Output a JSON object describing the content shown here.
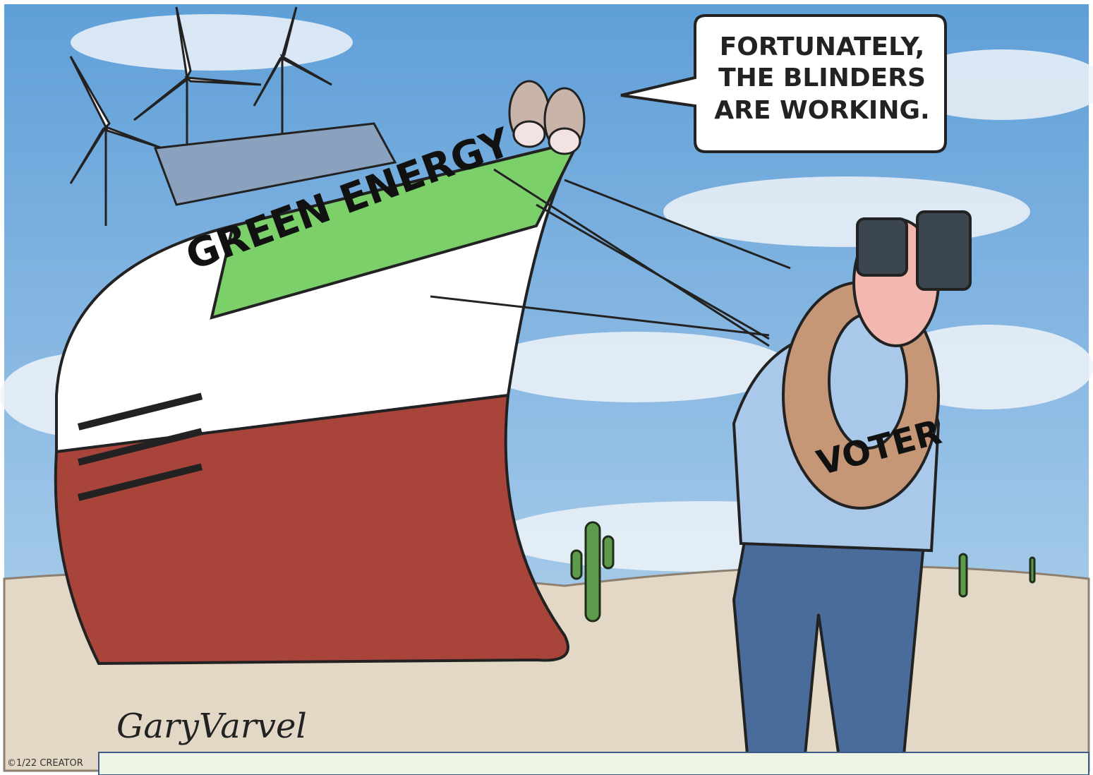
{
  "speech_bubble": {
    "lines": [
      "FORTUNATELY,",
      "THE BLINDERS",
      "ARE WORKING."
    ]
  },
  "ship_label": "GREEN ENERGY",
  "life_ring_label": "VOTER",
  "signature": "GaryVarvel",
  "copyright": "©1/22 CREATOR"
}
